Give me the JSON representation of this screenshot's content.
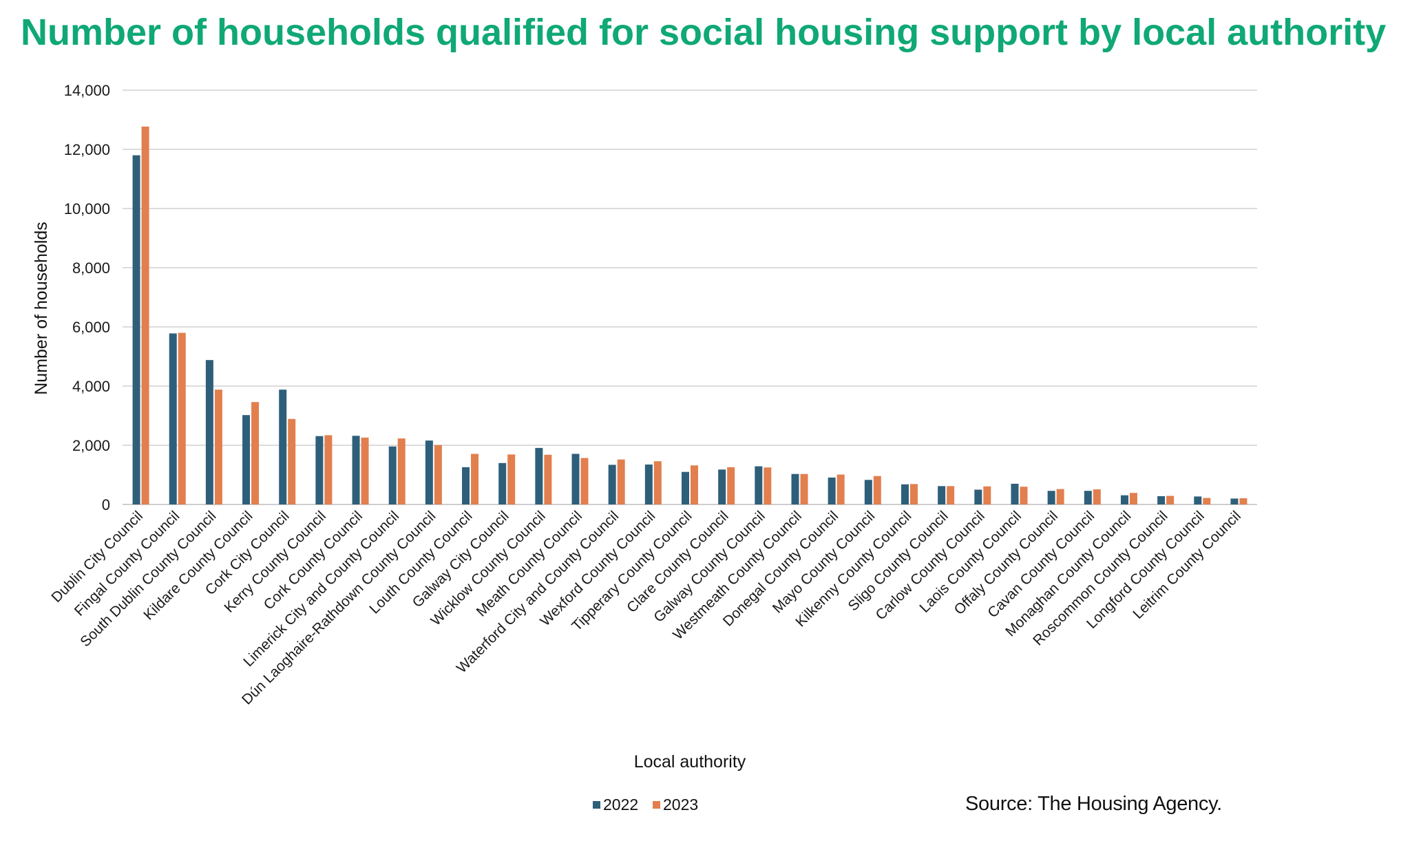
{
  "title": "Number of households qualified for social housing support by local authority",
  "source": "Source: The Housing Agency.",
  "colors": {
    "title": "#0fa876",
    "series_2022": "#2e5f7a",
    "series_2023": "#e27f4e",
    "grid": "#d0d0d0",
    "axis": "#bdbdbd"
  },
  "chart_data": {
    "type": "bar",
    "title": "Number of households qualified for social housing support by local authority",
    "xlabel": "Local authority",
    "ylabel": "Number of households",
    "ylim": [
      0,
      14000
    ],
    "yticks": [
      0,
      2000,
      4000,
      6000,
      8000,
      10000,
      12000,
      14000
    ],
    "ytick_labels": [
      "0",
      "2,000",
      "4,000",
      "6,000",
      "8,000",
      "10,000",
      "12,000",
      "14,000"
    ],
    "grid": true,
    "legend_position": "bottom-center",
    "categories": [
      "Dublin City Council",
      "Fingal County Council",
      "South Dublin County Council",
      "Kildare County Council",
      "Cork City Council",
      "Kerry County Council",
      "Cork County Council",
      "Limerick City and County Council",
      "Dún Laoghaire-Rathdown County Council",
      "Louth County Council",
      "Galway City Council",
      "Wicklow County Council",
      "Meath County Council",
      "Waterford City and County Council",
      "Wexford County Council",
      "Tipperary County Council",
      "Clare County Council",
      "Galway County Council",
      "Westmeath County Council",
      "Donegal County Council",
      "Mayo County Council",
      "Kilkenny County Council",
      "Sligo County Council",
      "Carlow County Council",
      "Laois County Council",
      "Offaly County Council",
      "Cavan County Council",
      "Monaghan County Council",
      "Roscommon County Council",
      "Longford County Council",
      "Leitrim County Council"
    ],
    "series": [
      {
        "name": "2022",
        "values": [
          11800,
          5780,
          4880,
          3020,
          3880,
          2310,
          2320,
          1960,
          2160,
          1260,
          1400,
          1910,
          1710,
          1340,
          1350,
          1100,
          1180,
          1290,
          1030,
          910,
          830,
          680,
          620,
          500,
          700,
          460,
          460,
          310,
          280,
          270,
          200
        ]
      },
      {
        "name": "2023",
        "values": [
          12770,
          5800,
          3880,
          3460,
          2890,
          2340,
          2260,
          2230,
          2010,
          1710,
          1690,
          1680,
          1570,
          1520,
          1460,
          1320,
          1260,
          1250,
          1030,
          1010,
          960,
          690,
          620,
          610,
          600,
          520,
          510,
          390,
          290,
          220,
          210
        ]
      }
    ]
  }
}
